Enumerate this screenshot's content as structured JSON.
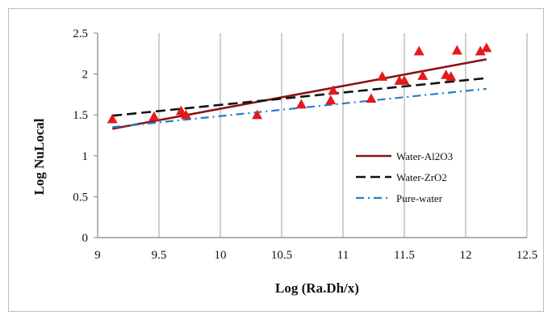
{
  "chart_data": {
    "type": "scatter",
    "title": "",
    "xlabel": "Log (Ra.Dh/x)",
    "ylabel": "Log NuLocal",
    "xlim": [
      9,
      12.5
    ],
    "ylim": [
      0,
      2.5
    ],
    "x_ticks": [
      "9",
      "9.5",
      "10",
      "10.5",
      "11",
      "11.5",
      "12",
      "12.5"
    ],
    "y_ticks": [
      "0",
      "0.5",
      "1",
      "1.5",
      "2",
      "2.5"
    ],
    "grid": "vertical",
    "legend_position": "center-right",
    "points": {
      "marker": "triangle",
      "color": "#e31a1c",
      "x": [
        9.12,
        9.46,
        9.68,
        9.72,
        10.3,
        10.66,
        10.9,
        10.92,
        11.23,
        11.32,
        11.46,
        11.5,
        11.62,
        11.65,
        11.84,
        11.88,
        11.93,
        12.12,
        12.17
      ],
      "y": [
        1.45,
        1.48,
        1.55,
        1.5,
        1.5,
        1.63,
        1.68,
        1.8,
        1.7,
        1.97,
        1.92,
        1.92,
        2.28,
        1.98,
        1.99,
        1.97,
        2.29,
        2.28,
        2.32
      ]
    },
    "series": [
      {
        "name": "Water-Al2O3",
        "color": "#8b1111",
        "style": "solid",
        "x": [
          9.12,
          12.17
        ],
        "y": [
          1.33,
          2.18
        ]
      },
      {
        "name": "Water-ZrO2",
        "color": "#111111",
        "style": "dashed",
        "x": [
          9.12,
          12.17
        ],
        "y": [
          1.49,
          1.95
        ]
      },
      {
        "name": "Pure-water",
        "color": "#1f7fc7",
        "style": "dashdot",
        "x": [
          9.12,
          12.17
        ],
        "y": [
          1.35,
          1.82
        ]
      }
    ]
  }
}
